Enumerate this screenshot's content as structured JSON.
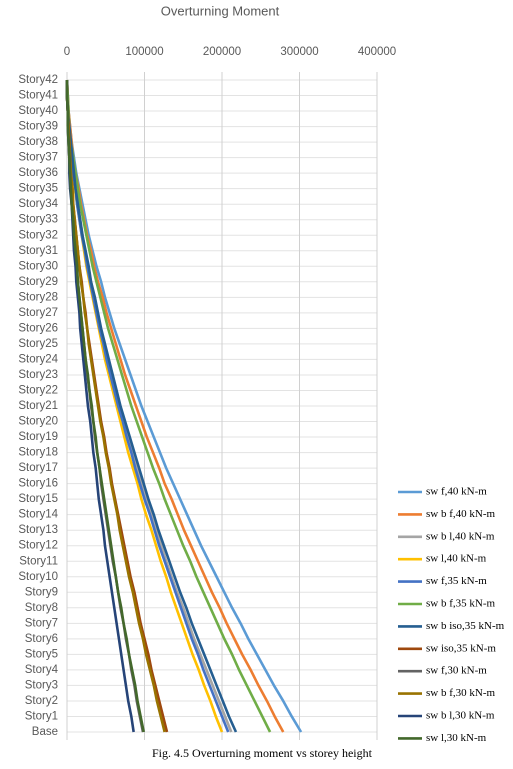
{
  "chart_data": {
    "type": "line",
    "orientation": "horizontal",
    "title": "Overturning Moment",
    "caption": "Fig. 4.5 Overturning moment vs storey height",
    "categories": [
      "Story42",
      "Story41",
      "Story40",
      "Story39",
      "Story38",
      "Story37",
      "Story36",
      "Story35",
      "Story34",
      "Story33",
      "Story32",
      "Story31",
      "Story30",
      "Story29",
      "Story28",
      "Story27",
      "Story26",
      "Story25",
      "Story24",
      "Story23",
      "Story22",
      "Story21",
      "Story20",
      "Story19",
      "Story18",
      "Story17",
      "Story16",
      "Story15",
      "Story14",
      "Story13",
      "Story12",
      "Story11",
      "Story10",
      "Story9",
      "Story8",
      "Story7",
      "Story6",
      "Story5",
      "Story4",
      "Story3",
      "Story2",
      "Story1",
      "Base"
    ],
    "xlim": [
      0,
      400000
    ],
    "xticks": [
      0,
      100000,
      200000,
      300000,
      400000
    ],
    "grid": true,
    "legend": "right",
    "series": [
      {
        "name": "sw f,40 kN-m",
        "color": "#5b9bd5",
        "values": [
          0,
          1000,
          2000,
          4000,
          6000,
          9000,
          12000,
          16000,
          20000,
          24000,
          28000,
          33000,
          38000,
          44000,
          49000,
          55000,
          61000,
          68000,
          75000,
          82000,
          89000,
          96000,
          104000,
          112000,
          120000,
          128000,
          137000,
          146000,
          155000,
          164000,
          173000,
          183000,
          193000,
          203000,
          213000,
          224000,
          234000,
          245000,
          256000,
          267000,
          279000,
          290000,
          302000
        ]
      },
      {
        "name": "sw b f,40 kN-m",
        "color": "#ed7d31",
        "values": [
          0,
          1000,
          2000,
          4000,
          6000,
          8000,
          11000,
          15000,
          18000,
          22000,
          26000,
          31000,
          35000,
          40000,
          46000,
          51000,
          57000,
          63000,
          69000,
          75000,
          82000,
          89000,
          96000,
          103000,
          111000,
          119000,
          126000,
          135000,
          143000,
          151000,
          160000,
          169000,
          178000,
          187000,
          197000,
          206000,
          216000,
          226000,
          237000,
          247000,
          258000,
          268000,
          279000
        ]
      },
      {
        "name": "sw b l,40 kN-m",
        "color": "#a5a5a5",
        "values": [
          0,
          0,
          1000,
          3000,
          4000,
          6000,
          9000,
          11000,
          14000,
          17000,
          20000,
          23000,
          27000,
          31000,
          35000,
          39000,
          43000,
          48000,
          52000,
          57000,
          62000,
          68000,
          73000,
          78000,
          84000,
          90000,
          96000,
          102000,
          109000,
          115000,
          122000,
          128000,
          135000,
          142000,
          150000,
          157000,
          164000,
          172000,
          180000,
          188000,
          196000,
          204000,
          212000
        ]
      },
      {
        "name": "sw l,40 kN-m",
        "color": "#ffc000",
        "values": [
          0,
          0,
          1000,
          3000,
          4000,
          6000,
          8000,
          10000,
          13000,
          16000,
          19000,
          22000,
          25000,
          29000,
          33000,
          37000,
          41000,
          45000,
          49000,
          54000,
          59000,
          64000,
          69000,
          74000,
          79000,
          85000,
          91000,
          96000,
          102000,
          109000,
          115000,
          121000,
          128000,
          134000,
          141000,
          148000,
          155000,
          162000,
          170000,
          177000,
          185000,
          192000,
          200000
        ]
      },
      {
        "name": "sw f,35 kN-m",
        "color": "#4472c4",
        "values": [
          0,
          0,
          1000,
          3000,
          4000,
          6000,
          8000,
          11000,
          13000,
          16000,
          19000,
          23000,
          26000,
          30000,
          34000,
          38000,
          42000,
          47000,
          51000,
          56000,
          61000,
          66000,
          72000,
          77000,
          83000,
          88000,
          94000,
          100000,
          107000,
          113000,
          119000,
          126000,
          133000,
          140000,
          147000,
          154000,
          161000,
          169000,
          176000,
          184000,
          192000,
          200000,
          208000
        ]
      },
      {
        "name": "sw b f,35 kN-m",
        "color": "#70ad47",
        "values": [
          0,
          1000,
          2000,
          3000,
          5000,
          8000,
          11000,
          14000,
          17000,
          21000,
          25000,
          29000,
          33000,
          38000,
          43000,
          48000,
          53000,
          59000,
          65000,
          71000,
          77000,
          83000,
          90000,
          97000,
          104000,
          111000,
          119000,
          126000,
          134000,
          142000,
          150000,
          159000,
          167000,
          176000,
          185000,
          194000,
          203000,
          213000,
          222000,
          232000,
          242000,
          252000,
          262000
        ]
      },
      {
        "name": "sw b iso,35 kN-m",
        "color": "#255e91",
        "values": [
          0,
          0,
          1000,
          3000,
          5000,
          7000,
          9000,
          11000,
          14000,
          17000,
          20000,
          24000,
          28000,
          31000,
          36000,
          40000,
          44000,
          49000,
          54000,
          59000,
          64000,
          69000,
          75000,
          81000,
          87000,
          93000,
          99000,
          105000,
          112000,
          118000,
          125000,
          132000,
          139000,
          146000,
          154000,
          161000,
          169000,
          177000,
          185000,
          193000,
          201000,
          209000,
          218000
        ]
      },
      {
        "name": "sw iso,35 kN-m",
        "color": "#9e480e",
        "values": [
          0,
          0,
          1000,
          2000,
          3000,
          4000,
          5000,
          7000,
          8000,
          10000,
          12000,
          14000,
          16000,
          19000,
          21000,
          24000,
          26000,
          29000,
          32000,
          35000,
          38000,
          41000,
          44000,
          48000,
          51000,
          55000,
          58000,
          62000,
          66000,
          70000,
          74000,
          78000,
          82000,
          87000,
          91000,
          95000,
          100000,
          105000,
          109000,
          114000,
          119000,
          124000,
          129000
        ]
      },
      {
        "name": "sw f,30 kN-m",
        "color": "#636363",
        "values": [
          0,
          0,
          1000,
          1000,
          2000,
          3000,
          4000,
          5000,
          6000,
          8000,
          9000,
          11000,
          12000,
          14000,
          16000,
          18000,
          20000,
          22000,
          24000,
          26000,
          29000,
          31000,
          34000,
          36000,
          39000,
          42000,
          44000,
          47000,
          50000,
          53000,
          56000,
          59000,
          63000,
          66000,
          69000,
          73000,
          76000,
          80000,
          83000,
          87000,
          90000,
          94000,
          98000
        ]
      },
      {
        "name": "sw b f,30 kN-m",
        "color": "#997300",
        "values": [
          0,
          0,
          1000,
          2000,
          3000,
          4000,
          5000,
          7000,
          8000,
          10000,
          12000,
          14000,
          16000,
          18000,
          21000,
          23000,
          26000,
          28000,
          31000,
          34000,
          37000,
          40000,
          43000,
          47000,
          50000,
          54000,
          57000,
          61000,
          65000,
          68000,
          72000,
          76000,
          80000,
          85000,
          89000,
          93000,
          98000,
          102000,
          107000,
          112000,
          116000,
          121000,
          126000
        ]
      },
      {
        "name": "sw b l,30 kN-m",
        "color": "#264478",
        "values": [
          0,
          0,
          1000,
          1000,
          2000,
          3000,
          3000,
          4000,
          6000,
          7000,
          8000,
          9000,
          11000,
          12000,
          14000,
          16000,
          17000,
          19000,
          21000,
          23000,
          25000,
          27000,
          30000,
          32000,
          34000,
          37000,
          39000,
          41000,
          44000,
          47000,
          49000,
          52000,
          55000,
          58000,
          61000,
          64000,
          67000,
          70000,
          73000,
          76000,
          79000,
          83000,
          86000
        ]
      },
      {
        "name": "sw l,30 kN-m",
        "color": "#43682b",
        "values": [
          0,
          0,
          1000,
          1000,
          2000,
          3000,
          4000,
          5000,
          6000,
          8000,
          9000,
          11000,
          13000,
          14000,
          16000,
          18000,
          20000,
          22000,
          24000,
          27000,
          29000,
          32000,
          34000,
          37000,
          39000,
          42000,
          45000,
          48000,
          51000,
          54000,
          57000,
          60000,
          63000,
          66000,
          70000,
          73000,
          77000,
          80000,
          84000,
          88000,
          91000,
          95000,
          99000
        ]
      }
    ]
  }
}
